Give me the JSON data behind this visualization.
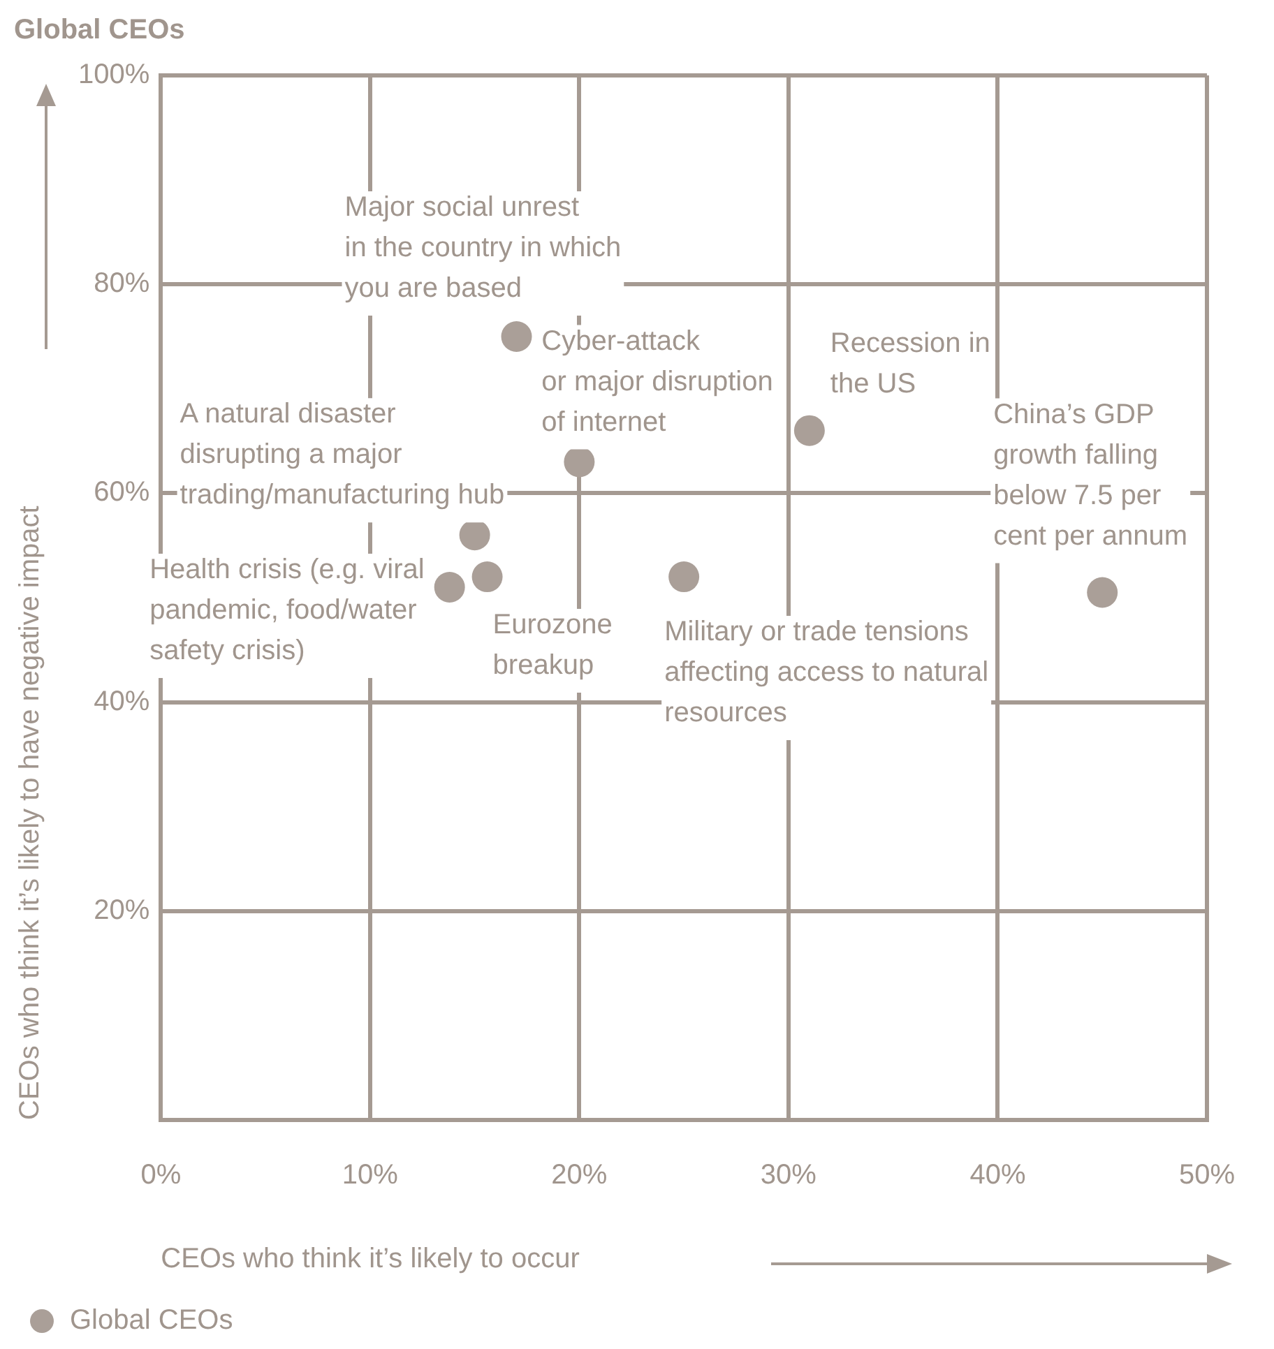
{
  "chart_data": {
    "type": "scatter",
    "title": "Global CEOs",
    "xlabel": "CEOs who think it’s likely to occur",
    "ylabel": "CEOs who think it’s likely to have negative impact",
    "series": [
      {
        "name": "Global CEOs",
        "color": "#aa9f98",
        "x": [
          17,
          20,
          31,
          45,
          15,
          15.6,
          13.8,
          25
        ],
        "values": [
          75,
          63,
          66,
          50.5,
          56,
          52,
          51,
          52
        ]
      }
    ],
    "xlim": [
      0,
      50
    ],
    "xticks": [
      {
        "value": 0,
        "label": "0%"
      },
      {
        "value": 10,
        "label": "10%"
      },
      {
        "value": 20,
        "label": "20%"
      },
      {
        "value": 30,
        "label": "30%"
      },
      {
        "value": 40,
        "label": "40%"
      },
      {
        "value": 50,
        "label": "50%"
      }
    ],
    "ylim": [
      0,
      100
    ],
    "yticks": [
      {
        "value": 0,
        "label": null
      },
      {
        "value": 20,
        "label": "20%"
      },
      {
        "value": 40,
        "label": "40%"
      },
      {
        "value": 60,
        "label": "60%"
      },
      {
        "value": 80,
        "label": "80%"
      },
      {
        "value": 100,
        "label": "100%"
      }
    ],
    "grid": true,
    "legend": "bottom",
    "marker": "circle",
    "annotations": [
      {
        "text": "Major social unrest\nin the country in which\nyou are based",
        "x": 17,
        "y": 75
      },
      {
        "text": "Cyber-attack\nor major disruption\nof internet",
        "x": 20,
        "y": 63
      },
      {
        "text": "Recession in\nthe US",
        "x": 31,
        "y": 66
      },
      {
        "text": "China’s GDP\ngrowth falling\nbelow 7.5 per\ncent per annum",
        "x": 45,
        "y": 50.5
      },
      {
        "text": "A natural disaster\ndisrupting a major\ntrading/manufacturing hub",
        "x": 15,
        "y": 56
      },
      {
        "text": "Eurozone\nbreakup",
        "x": 15.6,
        "y": 52
      },
      {
        "text": "Health crisis (e.g. viral\npandemic, food/water\nsafety crisis)",
        "x": 13.8,
        "y": 51
      },
      {
        "text": "Military or trade tensions\naffecting access to natural\nresources",
        "x": 25,
        "y": 52
      }
    ]
  }
}
